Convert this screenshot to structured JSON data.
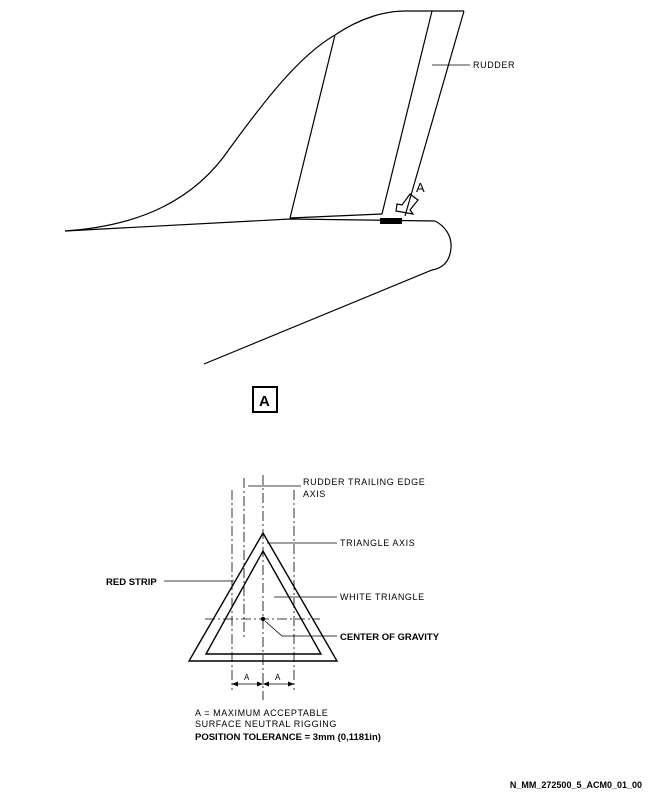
{
  "labels": {
    "rudder": "RUDDER",
    "view_arrow": "A",
    "detail_view": "A",
    "rudder_trailing_edge_axis_line1": "RUDDER TRAILING EDGE",
    "rudder_trailing_edge_axis_line2": "AXIS",
    "triangle_axis": "TRIANGLE AXIS",
    "red_strip": "RED STRIP",
    "white_triangle": "WHITE TRIANGLE",
    "center_of_gravity": "CENTER OF GRAVITY",
    "dim_a_left": "A",
    "dim_a_right": "A"
  },
  "note": {
    "line1": "A = MAXIMUM ACCEPTABLE",
    "line2": "SURFACE NEUTRAL RIGGING",
    "line3": "POSITION TOLERANCE = 3mm (0,1181in)"
  },
  "figure_id": "N_MM_272500_5_ACM0_01_00"
}
